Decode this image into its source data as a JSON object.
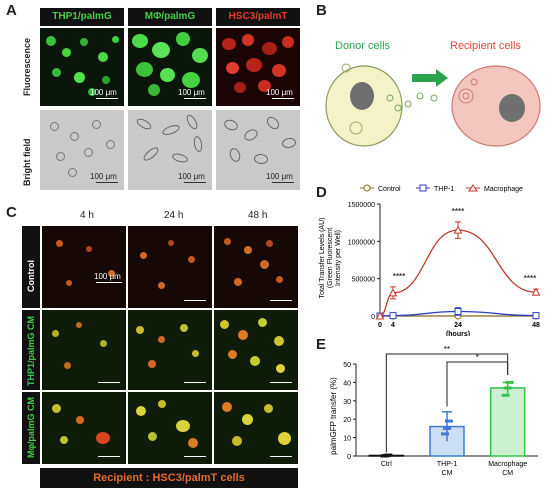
{
  "panel_a": {
    "letter": "A",
    "headers": [
      "THP1/palmG",
      "MΦ/palmG",
      "HSC3/palmT"
    ],
    "row_labels": [
      "Fluorescence",
      "Bright field"
    ],
    "scale_label": "100 μm",
    "colors": {
      "green_text": "#3fcf4a",
      "red_text": "#e03b2c"
    }
  },
  "panel_b": {
    "letter": "B",
    "donor_label": "Donor cells",
    "recipient_label": "Recipient cells",
    "colors": {
      "donor": "#2aa34a",
      "recipient": "#e0453a",
      "arrow": "#2aa34a"
    }
  },
  "panel_c": {
    "letter": "C",
    "time_labels": [
      "4 h",
      "24 h",
      "48 h"
    ],
    "row_labels": [
      "Control",
      "THP1/palmG CM",
      "Mφ/palmG CM"
    ],
    "scale_label": "100 μm",
    "footer": "Recipient : HSC3/palmT cells"
  },
  "panel_d": {
    "letter": "D",
    "legend": [
      "Control",
      "THP-1",
      "Macrophage"
    ],
    "sig_labels": [
      "****",
      "****",
      "****"
    ]
  },
  "panel_e": {
    "letter": "E",
    "sig_labels": [
      "**",
      "*"
    ]
  },
  "chart_data": [
    {
      "type": "line",
      "panel": "D",
      "xlabel": "(hours)",
      "ylabel": "Total Transfer Levels (AU) (Green Fluorescent Intensity per Well)",
      "x": [
        0,
        4,
        24,
        48
      ],
      "xticks": [
        "0",
        "4",
        "24",
        "48"
      ],
      "ylim": [
        0,
        1500000
      ],
      "yticks": [
        "0",
        "500000",
        "1000000",
        "1500000"
      ],
      "series": [
        {
          "name": "Control",
          "color": "#8a6a1c",
          "marker": "circle",
          "values": [
            0,
            0,
            0,
            0
          ],
          "errors": [
            0,
            0,
            0,
            0
          ]
        },
        {
          "name": "THP-1",
          "color": "#2c3fbf",
          "marker": "square",
          "values": [
            0,
            5000,
            60000,
            5000
          ],
          "errors": [
            0,
            5000,
            50000,
            5000
          ]
        },
        {
          "name": "Macrophage",
          "color": "#c0392b",
          "marker": "triangle",
          "values": [
            0,
            310000,
            1150000,
            320000
          ],
          "errors": [
            0,
            80000,
            110000,
            40000
          ]
        }
      ]
    },
    {
      "type": "bar",
      "panel": "E",
      "ylabel": "palmGFP transfer (%)",
      "categories": [
        "Ctrl",
        "THP-1\nCM",
        "Macrophage\nCM"
      ],
      "values": [
        0.3,
        16,
        37
      ],
      "errors": [
        0.3,
        8,
        3
      ],
      "points": [
        [
          0,
          0.2,
          0.5
        ],
        [
          12,
          15,
          19
        ],
        [
          33,
          37,
          40
        ]
      ],
      "ylim": [
        0,
        50
      ],
      "yticks": [
        "0",
        "10",
        "20",
        "30",
        "40",
        "50"
      ],
      "colors": [
        "#111111",
        "#3b7bd4",
        "#35c24a"
      ]
    }
  ]
}
